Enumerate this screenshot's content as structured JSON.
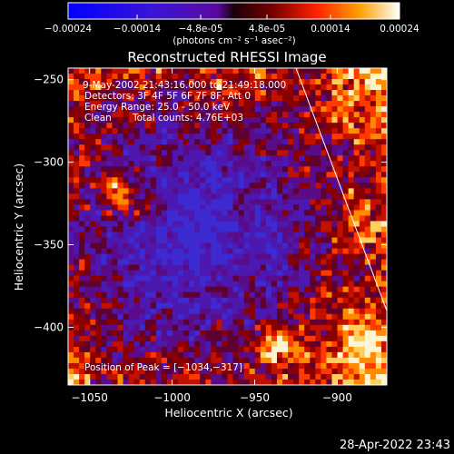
{
  "colorbar": {
    "ticks": [
      "-0.00024",
      "-0.00014",
      "-4.8e-05",
      "4.8e-05",
      "0.00014",
      "0.00024"
    ],
    "unit_label": "(photons cm⁻² s⁻¹ asec⁻²)",
    "range": [
      -0.00024,
      0.00024
    ]
  },
  "chart_data": {
    "type": "heatmap",
    "title": "Reconstructed RHESSI Image",
    "xlabel": "Heliocentric X (arcsec)",
    "ylabel": "Heliocentric Y (arcsec)",
    "xlim": [
      -1063,
      -870
    ],
    "ylim": [
      -435,
      -243
    ],
    "x_ticks": [
      -1050,
      -1000,
      -950,
      -900
    ],
    "x_tick_labels": [
      "−1050",
      "−1000",
      "−950",
      "−900"
    ],
    "y_ticks": [
      -250,
      -300,
      -350,
      -400
    ],
    "y_tick_labels": [
      "−250",
      "−300",
      "−350",
      "−400"
    ],
    "limb_line": [
      [
        -925,
        -243
      ],
      [
        -870,
        -390
      ]
    ],
    "peak_position": [
      -1034,
      -317
    ],
    "annotations": {
      "time_range": "9-May-2002 21:43:16.000 to 21:49:18.000",
      "detectors": "Detectors: 3F 4F 5F 6F 7F 8F, Att 0",
      "energy_range": "Energy Range: 25.0 - 50.0 keV",
      "clean_method": "Clean",
      "total_counts": "Total counts: 4.76E+03",
      "peak_text": "Position of Peak = [−1034,−317]"
    }
  },
  "footer": {
    "timestamp": "28-Apr-2022 23:43"
  }
}
